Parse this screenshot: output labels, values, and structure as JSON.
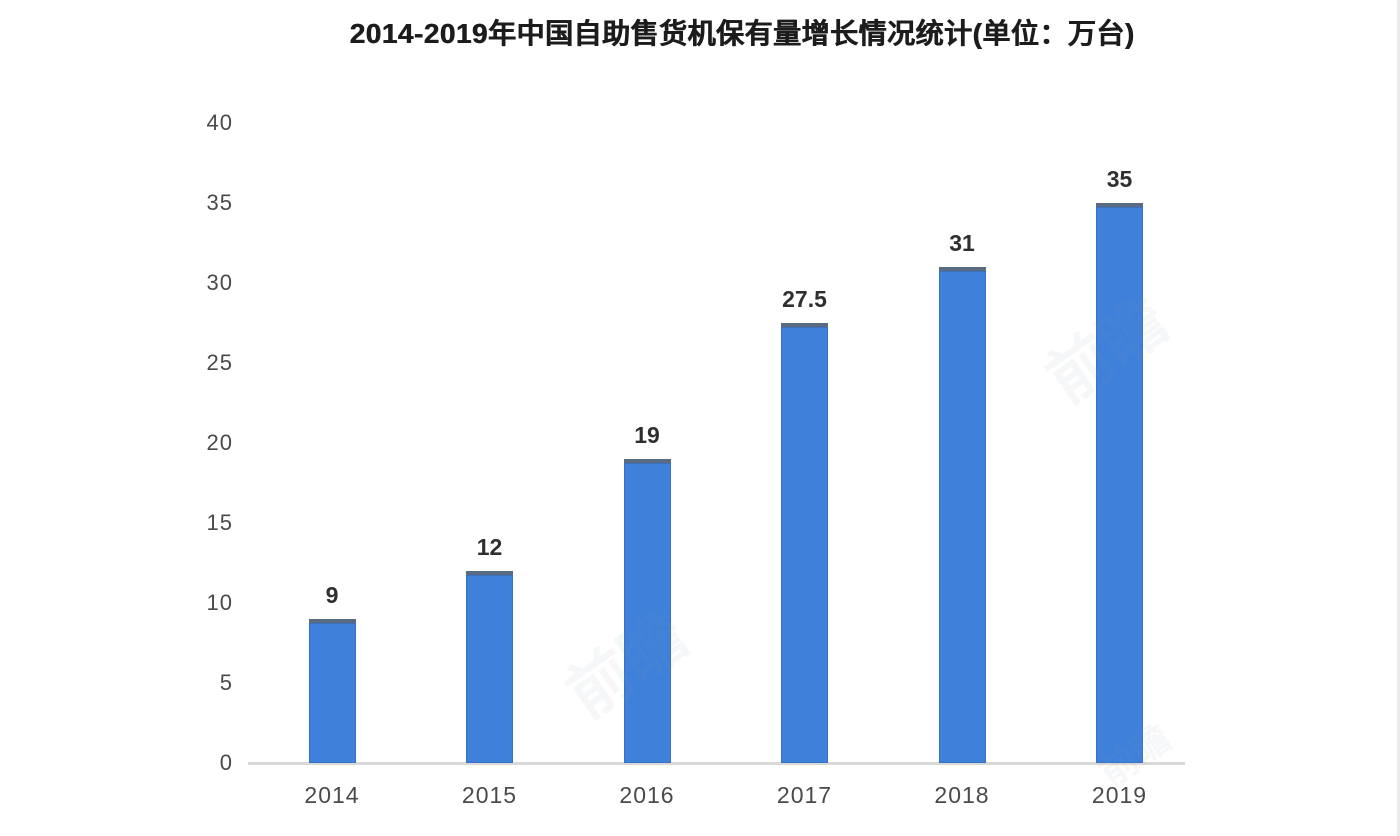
{
  "chart_data": {
    "type": "bar",
    "title": "2014-2019年中国自助售货机保有量增长情况统计(单位：万台)",
    "categories": [
      "2014",
      "2015",
      "2016",
      "2017",
      "2018",
      "2019"
    ],
    "values": [
      9,
      12,
      19,
      27.5,
      31,
      35
    ],
    "value_labels": [
      "9",
      "12",
      "19",
      "27.5",
      "31",
      "35"
    ],
    "y_ticks": [
      0,
      5,
      10,
      15,
      20,
      25,
      30,
      35,
      40
    ],
    "ylim": [
      0,
      40
    ],
    "xlabel": "",
    "ylabel": "",
    "grid": false,
    "legend": "none",
    "watermark_text": "前瞻",
    "colors": {
      "bar": "#3e80da",
      "bar_top_edge": "#5a6b80",
      "axis_line": "#d9d9d9",
      "title_text": "#1c1c1c",
      "axis_tick_text": "#4a4a4a",
      "value_label_text": "#2f2f2f",
      "watermark": "#93a0b4",
      "background": "#ffffff"
    }
  }
}
